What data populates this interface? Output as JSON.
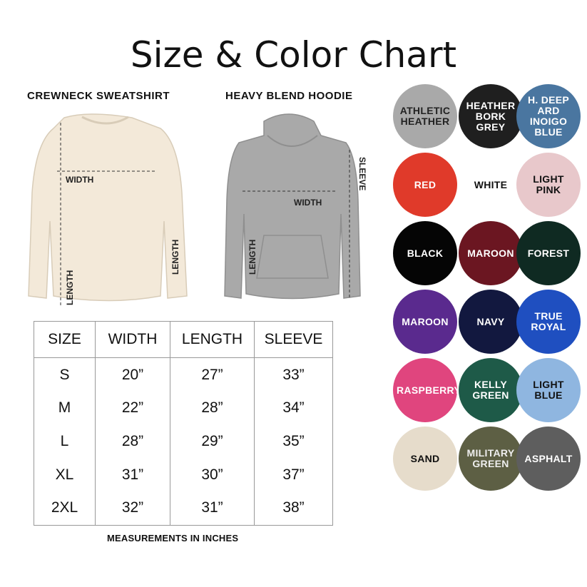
{
  "title": "Size & Color Chart",
  "garments": [
    {
      "name": "CREWNECK SWEATSHIRT",
      "color": "#f3e9d9",
      "labels": {
        "width": "WIDTH",
        "length": "LENGTH",
        "sleeve": "LENGTH"
      }
    },
    {
      "name": "HEAVY BLEND HOODIE",
      "color": "#a9a9a9",
      "labels": {
        "width": "WIDTH",
        "length": "LENGTH",
        "sleeve": "SLEEVE"
      }
    }
  ],
  "size_table": {
    "headers": [
      "SIZE",
      "WIDTH",
      "LENGTH",
      "SLEEVE"
    ],
    "rows": [
      [
        "S",
        "20”",
        "27”",
        "33”"
      ],
      [
        "M",
        "22”",
        "28”",
        "34”"
      ],
      [
        "L",
        "28”",
        "29”",
        "35”"
      ],
      [
        "XL",
        "31”",
        "30”",
        "37”"
      ],
      [
        "2XL",
        "32”",
        "31”",
        "38”"
      ]
    ],
    "note": "MEASUREMENTS IN INCHES"
  },
  "colors": [
    {
      "label": "ATHLETIC HEATHER",
      "hex": "#a9a9a9",
      "text": "#222"
    },
    {
      "label": "HEATHER BORK GREY",
      "hex": "#1f1f1f",
      "text": "#fff"
    },
    {
      "label": "H. DEEP ARD INOIGO BLUE",
      "hex": "#4a76a0",
      "text": "#fff"
    },
    {
      "label": "RED",
      "hex": "#e03a2a",
      "text": "#fff"
    },
    {
      "label": "WHITE",
      "hex": "#ffffff",
      "text": "#111"
    },
    {
      "label": "LIGHT PINK",
      "hex": "#e8c8cb",
      "text": "#111"
    },
    {
      "label": "BLACK",
      "hex": "#050505",
      "text": "#fff"
    },
    {
      "label": "MAROON",
      "hex": "#6b1621",
      "text": "#fff"
    },
    {
      "label": "FOREST",
      "hex": "#0f2a22",
      "text": "#fff"
    },
    {
      "label": "MAROON",
      "hex": "#5a2a8e",
      "text": "#fff"
    },
    {
      "label": "NAVY",
      "hex": "#12183f",
      "text": "#fff"
    },
    {
      "label": "TRUE ROYAL",
      "hex": "#1f4fc0",
      "text": "#fff"
    },
    {
      "label": "RASPBERRY",
      "hex": "#e0457e",
      "text": "#fff"
    },
    {
      "label": "KELLY GREEN",
      "hex": "#1e5a48",
      "text": "#fff"
    },
    {
      "label": "LIGHT BLUE",
      "hex": "#8fb6e0",
      "text": "#111"
    },
    {
      "label": "SAND",
      "hex": "#e6dccb",
      "text": "#111"
    },
    {
      "label": "MILITARY GREEN",
      "hex": "#5d5f44",
      "text": "#eee"
    },
    {
      "label": "ASPHALT",
      "hex": "#5e5e5e",
      "text": "#fff"
    }
  ]
}
